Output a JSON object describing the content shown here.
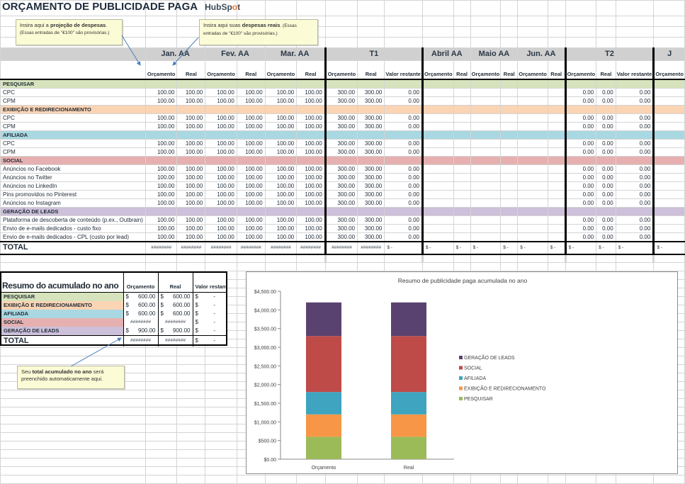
{
  "title": "ORÇAMENTO DE PUBLICIDADE PAGA",
  "logo": {
    "text_a": "HubSp",
    "text_b": "o",
    "text_c": "t"
  },
  "callouts": {
    "budget": {
      "pre": "Insira aqui a ",
      "bold": "projeção de despesas",
      "post": ".",
      "note": "(Essas entradas de \"€100\" são provisórias.)"
    },
    "actual": {
      "pre": "Insira aqui suas ",
      "bold": "despesas reais",
      "post": ". (Essas entradas de \"€100\" são provisórias.)"
    },
    "ytd": {
      "pre": "Seu ",
      "bold": "total acumulado no ano",
      "post": " será preenchido automaticamente aqui."
    }
  },
  "table": {
    "periods": [
      {
        "label": "Jan. AA",
        "cols": [
          "Orçamento",
          "Real"
        ]
      },
      {
        "label": "Fev. AA",
        "cols": [
          "Orçamento",
          "Real"
        ]
      },
      {
        "label": "Mar. AA",
        "cols": [
          "Orçamento",
          "Real"
        ]
      },
      {
        "label": "T1",
        "cols": [
          "Orçamento",
          "Real",
          "Valor restante"
        ]
      },
      {
        "label": "Abril AA",
        "cols": [
          "Orçamento",
          "Real"
        ]
      },
      {
        "label": "Maio AA",
        "cols": [
          "Orçamento",
          "Real"
        ]
      },
      {
        "label": "Jun. AA",
        "cols": [
          "Orçamento",
          "Real"
        ]
      },
      {
        "label": "T2",
        "cols": [
          "Orçamento",
          "Real",
          "Valor restante"
        ]
      },
      {
        "label": "J",
        "cols": [
          "Orçamento"
        ]
      }
    ],
    "item_values": [
      "100.00",
      "100.00",
      "100.00",
      "100.00",
      "100.00",
      "100.00",
      "300.00",
      "300.00",
      "0.00",
      "",
      "",
      "",
      "",
      "",
      "",
      "0.00",
      "0.00",
      "0.00",
      ""
    ],
    "sections": [
      {
        "name": "PESQUISAR",
        "color": "#d6e3bc",
        "items": [
          "CPC",
          "CPM"
        ]
      },
      {
        "name": "EXIBIÇÃO E REDIRECIONAMENTO",
        "color": "#fbd4b4",
        "items": [
          "CPC",
          "CPM"
        ]
      },
      {
        "name": "AFILIADA",
        "color": "#a9d8e2",
        "items": [
          "CPC",
          "CPM"
        ]
      },
      {
        "name": "SOCIAL",
        "color": "#e6b0b0",
        "items": [
          "Anúncios no Facebook",
          "Anúncios no Twitter",
          "Anúncios no LinkedIn",
          "Pins promovidos no Pinterest",
          "Anúncios no Instagram"
        ]
      },
      {
        "name": "GERAÇÃO DE LEADS",
        "color": "#ccc0da",
        "items": [
          "Plataforma de descoberta de conteúdo (p.ex., Outbrain)",
          "Envio de e-mails dedicados - custo fixo",
          "Envio de e-mails dedicados - CPL (custo por lead)"
        ]
      }
    ],
    "total": {
      "label": "TOTAL",
      "values": [
        "########",
        "########",
        "########",
        "########",
        "########",
        "########",
        "########",
        "########",
        "$ -",
        "$ -",
        "$ -",
        "$ -",
        "$ -",
        "$ -",
        "$ -",
        "$ -",
        "$ -",
        "$ -",
        "$ -"
      ]
    }
  },
  "summary": {
    "title": "Resumo do acumulado no ano",
    "headers": [
      "Orçamento",
      "Real",
      "Valor restante"
    ],
    "rows": [
      {
        "label": "PESQUISAR",
        "color": "#d6e3bc",
        "budget": "600.00",
        "actual": "600.00",
        "remaining": "-"
      },
      {
        "label": "EXIBIÇÃO E REDIRECIONAMENTO",
        "color": "#fbd4b4",
        "budget": "600.00",
        "actual": "600.00",
        "remaining": "-"
      },
      {
        "label": "AFILIADA",
        "color": "#a9d8e2",
        "budget": "600.00",
        "actual": "600.00",
        "remaining": "-"
      },
      {
        "label": "SOCIAL",
        "color": "#e6b0b0",
        "budget": "########",
        "actual": "########",
        "remaining": "-"
      },
      {
        "label": "GERAÇÃO DE LEADS",
        "color": "#ccc0da",
        "budget": "900.00",
        "actual": "900.00",
        "remaining": "-"
      }
    ],
    "total": {
      "label": "TOTAL",
      "budget": "########",
      "actual": "########",
      "remaining": "-"
    },
    "currency": "$"
  },
  "chart_data": {
    "type": "bar",
    "stacked": true,
    "title": "Resumo de publicidade paga acumulada no ano",
    "categories": [
      "Orçamento",
      "Real"
    ],
    "series": [
      {
        "name": "PESQUISAR",
        "color": "#9bbb59",
        "values": [
          600,
          600
        ]
      },
      {
        "name": "EXIBIÇÃO E REDIRECIONAMENTO",
        "color": "#f79646",
        "values": [
          600,
          600
        ]
      },
      {
        "name": "AFILIADA",
        "color": "#3ea4bf",
        "values": [
          600,
          600
        ]
      },
      {
        "name": "SOCIAL",
        "color": "#be4b48",
        "values": [
          1500,
          1500
        ]
      },
      {
        "name": "GERAÇÃO DE LEADS",
        "color": "#5a4270",
        "values": [
          900,
          900
        ]
      }
    ],
    "ylim": [
      0,
      4500
    ],
    "yticks": [
      "$0.00",
      "$500.00",
      "$1,000.00",
      "$1,500.00",
      "$2,000.00",
      "$2,500.00",
      "$3,000.00",
      "$3,500.00",
      "$4,000.00",
      "$4,500.00"
    ],
    "legend": "right",
    "grid": false
  }
}
